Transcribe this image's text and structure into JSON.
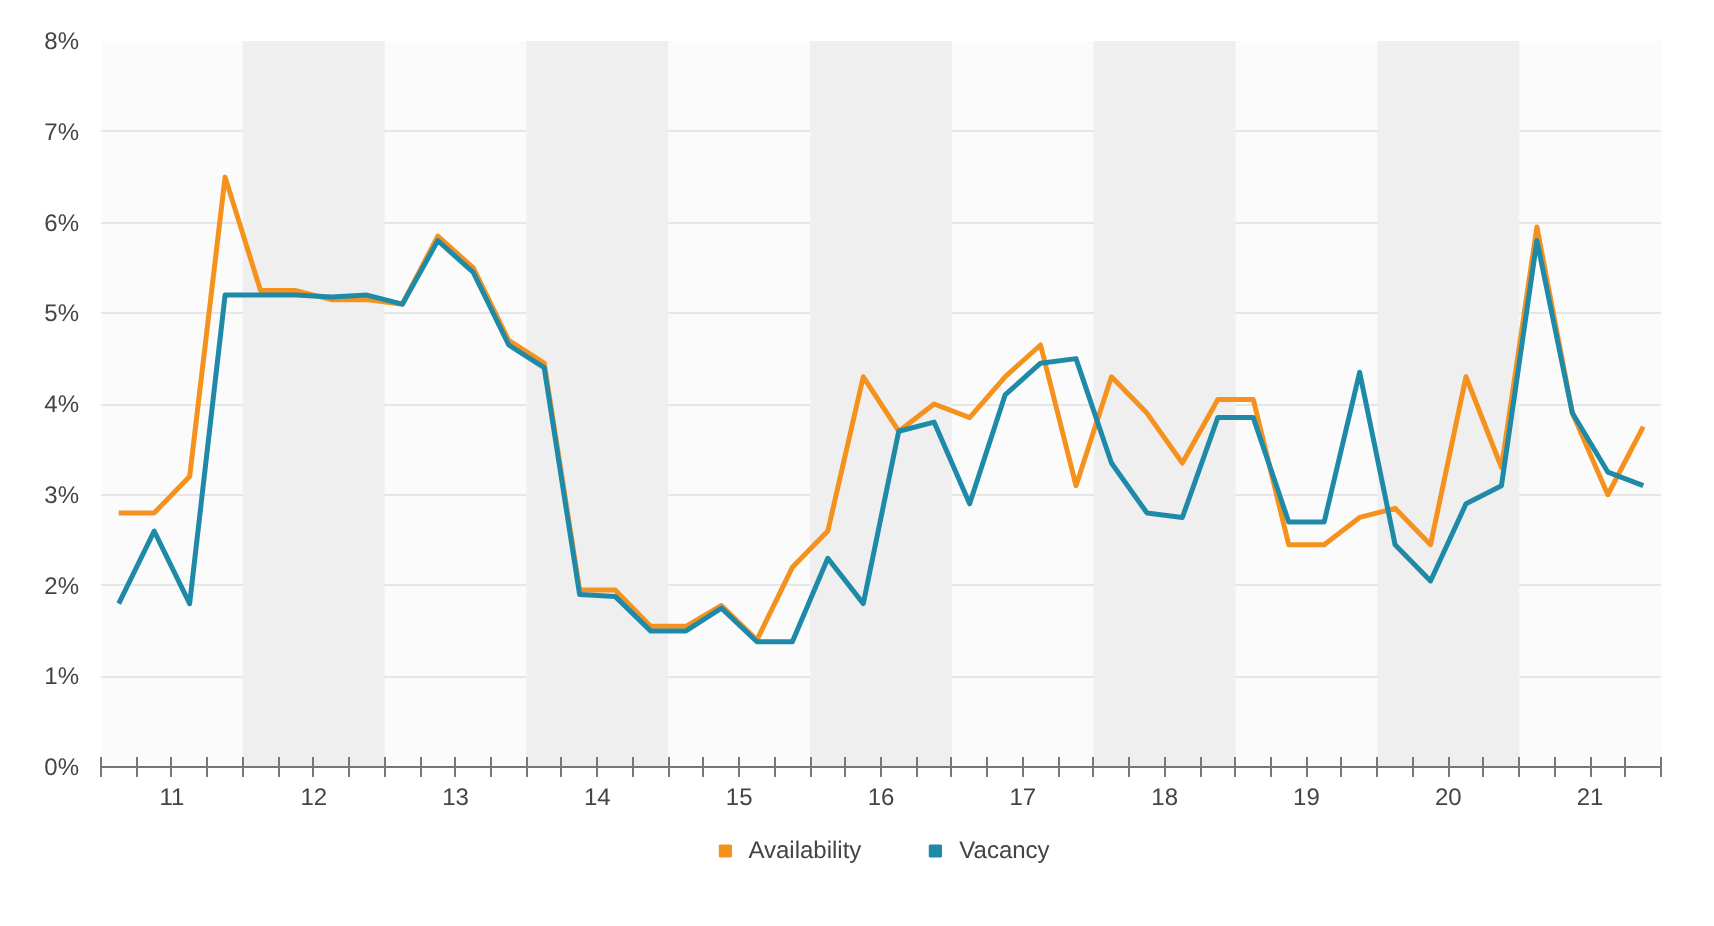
{
  "chart_data": {
    "type": "line",
    "x": [
      11.125,
      11.375,
      11.625,
      11.875,
      12.125,
      12.375,
      12.625,
      12.875,
      13.125,
      13.375,
      13.625,
      13.875,
      14.125,
      14.375,
      14.625,
      14.875,
      15.125,
      15.375,
      15.625,
      15.875,
      16.125,
      16.375,
      16.625,
      16.875,
      17.125,
      17.375,
      17.625,
      17.875,
      18.125,
      18.375,
      18.625,
      18.875,
      19.125,
      19.375,
      19.625,
      19.875,
      20.125,
      20.375,
      20.625,
      20.875,
      21.125,
      21.375,
      21.625,
      21.875
    ],
    "series": [
      {
        "name": "Availability",
        "color": "#f5921e",
        "values": [
          2.8,
          2.8,
          3.2,
          6.5,
          5.25,
          5.25,
          5.15,
          5.15,
          5.1,
          5.85,
          5.5,
          4.7,
          4.45,
          1.95,
          1.95,
          1.55,
          1.55,
          1.78,
          1.4,
          2.2,
          2.6,
          4.3,
          3.7,
          4.0,
          3.85,
          4.3,
          4.65,
          3.1,
          4.3,
          3.9,
          3.35,
          4.05,
          4.05,
          2.45,
          2.45,
          2.75,
          2.85,
          2.45,
          4.3,
          3.3,
          5.95,
          3.9,
          3.0,
          3.75
        ]
      },
      {
        "name": "Vacancy",
        "color": "#1e8aa8",
        "values": [
          1.8,
          2.6,
          1.8,
          5.2,
          5.2,
          5.2,
          5.18,
          5.2,
          5.1,
          5.8,
          5.45,
          4.65,
          4.4,
          1.9,
          1.88,
          1.5,
          1.5,
          1.75,
          1.38,
          1.38,
          2.3,
          1.8,
          3.7,
          3.8,
          2.9,
          4.1,
          4.45,
          4.5,
          3.35,
          2.8,
          2.75,
          3.85,
          3.85,
          2.7,
          2.7,
          4.35,
          2.45,
          2.05,
          2.9,
          3.1,
          5.8,
          3.9,
          3.25,
          3.1
        ]
      }
    ],
    "xlim": [
      11,
      22
    ],
    "xticks": [
      {
        "value": 11,
        "label": null
      },
      {
        "value": 11.25,
        "label": null
      },
      {
        "value": 11.5,
        "label": "11"
      },
      {
        "value": 11.75,
        "label": null
      },
      {
        "value": 12,
        "label": null
      },
      {
        "value": 12.25,
        "label": null
      },
      {
        "value": 12.5,
        "label": "12"
      },
      {
        "value": 12.75,
        "label": null
      },
      {
        "value": 13,
        "label": null
      },
      {
        "value": 13.25,
        "label": null
      },
      {
        "value": 13.5,
        "label": "13"
      },
      {
        "value": 13.75,
        "label": null
      },
      {
        "value": 14,
        "label": null
      },
      {
        "value": 14.25,
        "label": null
      },
      {
        "value": 14.5,
        "label": "14"
      },
      {
        "value": 14.75,
        "label": null
      },
      {
        "value": 15,
        "label": null
      },
      {
        "value": 15.25,
        "label": null
      },
      {
        "value": 15.5,
        "label": "15"
      },
      {
        "value": 15.75,
        "label": null
      },
      {
        "value": 16,
        "label": null
      },
      {
        "value": 16.25,
        "label": null
      },
      {
        "value": 16.5,
        "label": "16"
      },
      {
        "value": 16.75,
        "label": null
      },
      {
        "value": 17,
        "label": null
      },
      {
        "value": 17.25,
        "label": null
      },
      {
        "value": 17.5,
        "label": "17"
      },
      {
        "value": 17.75,
        "label": null
      },
      {
        "value": 18,
        "label": null
      },
      {
        "value": 18.25,
        "label": null
      },
      {
        "value": 18.5,
        "label": "18"
      },
      {
        "value": 18.75,
        "label": null
      },
      {
        "value": 19,
        "label": null
      },
      {
        "value": 19.25,
        "label": null
      },
      {
        "value": 19.5,
        "label": "19"
      },
      {
        "value": 19.75,
        "label": null
      },
      {
        "value": 20,
        "label": null
      },
      {
        "value": 20.25,
        "label": null
      },
      {
        "value": 20.5,
        "label": "20"
      },
      {
        "value": 20.75,
        "label": null
      },
      {
        "value": 21,
        "label": null
      },
      {
        "value": 21.25,
        "label": null
      },
      {
        "value": 21.5,
        "label": "21"
      },
      {
        "value": 21.75,
        "label": null
      },
      {
        "value": 22,
        "label": null
      }
    ],
    "ylim": [
      0,
      8
    ],
    "yticks": [
      {
        "value": 0,
        "label": "0%"
      },
      {
        "value": 1,
        "label": "1%"
      },
      {
        "value": 2,
        "label": "2%"
      },
      {
        "value": 3,
        "label": "3%"
      },
      {
        "value": 4,
        "label": "4%"
      },
      {
        "value": 5,
        "label": "5%"
      },
      {
        "value": 6,
        "label": "6%"
      },
      {
        "value": 7,
        "label": "7%"
      },
      {
        "value": 8,
        "label": "8%"
      }
    ],
    "bands": [
      {
        "axis": "x",
        "from": 12,
        "to": 13,
        "color": "#efefef"
      },
      {
        "axis": "x",
        "from": 14,
        "to": 15,
        "color": "#efefef"
      },
      {
        "axis": "x",
        "from": 16,
        "to": 17,
        "color": "#efefef"
      },
      {
        "axis": "x",
        "from": 18,
        "to": 19,
        "color": "#efefef"
      },
      {
        "axis": "x",
        "from": 20,
        "to": 21,
        "color": "#efefef"
      }
    ],
    "grid": "y",
    "legend": "bottom",
    "line_style": "solid",
    "marker": "none"
  }
}
